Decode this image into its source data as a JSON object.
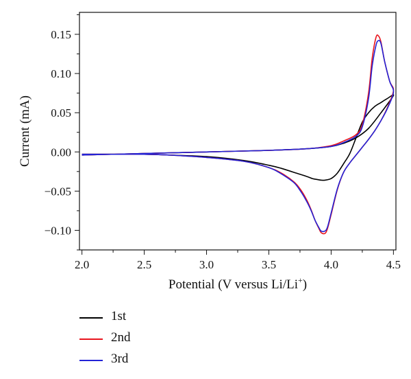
{
  "chart_data": {
    "type": "line",
    "title": "",
    "xlabel": "Potential (V versus Li/Li",
    "xlabel_sup": "+",
    "xlabel_end": ")",
    "ylabel": "Current (mA)",
    "xlim": [
      1.98,
      4.52
    ],
    "ylim": [
      -0.125,
      0.178
    ],
    "x_ticks": [
      2.0,
      2.5,
      3.0,
      3.5,
      4.0,
      4.5
    ],
    "x_tick_labels": [
      "2.0",
      "2.5",
      "3.0",
      "3.5",
      "4.0",
      "4.5"
    ],
    "y_ticks": [
      -0.1,
      -0.05,
      0.0,
      0.05,
      0.1,
      0.15
    ],
    "y_tick_labels": [
      "−0.10",
      "−0.05",
      "0.00",
      "0.05",
      "0.10",
      "0.15"
    ],
    "grid": false,
    "legend_position": "below",
    "series": [
      {
        "name": "1st",
        "color": "#000000",
        "x": [
          2.0,
          2.5,
          3.0,
          3.5,
          3.8,
          4.0,
          4.1,
          4.2,
          4.3,
          4.4,
          4.5,
          4.45,
          4.4,
          4.35,
          4.3,
          4.25,
          4.2,
          4.15,
          4.1,
          4.05,
          4.0,
          3.95,
          3.92,
          3.88,
          3.85,
          3.8,
          3.7,
          3.6,
          3.5,
          3.3,
          3.0,
          2.7,
          2.5,
          2.2,
          2.0
        ],
        "y": [
          -0.004,
          -0.002,
          0.0,
          0.002,
          0.004,
          0.007,
          0.011,
          0.018,
          0.03,
          0.05,
          0.072,
          0.068,
          0.063,
          0.058,
          0.05,
          0.038,
          0.018,
          -0.002,
          -0.015,
          -0.027,
          -0.034,
          -0.036,
          -0.036,
          -0.035,
          -0.034,
          -0.031,
          -0.026,
          -0.021,
          -0.017,
          -0.011,
          -0.006,
          -0.004,
          -0.003,
          -0.003,
          -0.003
        ]
      },
      {
        "name": "2nd",
        "color": "#e8141c",
        "x": [
          2.0,
          2.5,
          3.0,
          3.5,
          3.8,
          4.0,
          4.1,
          4.2,
          4.25,
          4.3,
          4.33,
          4.36,
          4.38,
          4.4,
          4.43,
          4.47,
          4.5,
          4.45,
          4.4,
          4.35,
          4.3,
          4.25,
          4.2,
          4.15,
          4.1,
          4.05,
          4.0,
          3.97,
          3.95,
          3.92,
          3.9,
          3.87,
          3.84,
          3.8,
          3.75,
          3.7,
          3.6,
          3.5,
          3.3,
          3.0,
          2.7,
          2.5,
          2.2,
          2.0
        ],
        "y": [
          -0.004,
          -0.002,
          0.0,
          0.002,
          0.004,
          0.008,
          0.014,
          0.022,
          0.035,
          0.075,
          0.12,
          0.146,
          0.148,
          0.14,
          0.115,
          0.09,
          0.078,
          0.056,
          0.04,
          0.027,
          0.016,
          0.006,
          -0.004,
          -0.014,
          -0.026,
          -0.048,
          -0.08,
          -0.098,
          -0.104,
          -0.103,
          -0.097,
          -0.087,
          -0.074,
          -0.06,
          -0.047,
          -0.038,
          -0.027,
          -0.02,
          -0.012,
          -0.007,
          -0.004,
          -0.003,
          -0.003,
          -0.003
        ]
      },
      {
        "name": "3rd",
        "color": "#2323d6",
        "x": [
          2.0,
          2.5,
          3.0,
          3.5,
          3.8,
          4.0,
          4.1,
          4.2,
          4.25,
          4.3,
          4.33,
          4.36,
          4.38,
          4.4,
          4.43,
          4.47,
          4.5,
          4.45,
          4.4,
          4.35,
          4.3,
          4.25,
          4.2,
          4.15,
          4.1,
          4.05,
          4.0,
          3.97,
          3.95,
          3.92,
          3.9,
          3.87,
          3.84,
          3.8,
          3.75,
          3.7,
          3.6,
          3.5,
          3.3,
          3.0,
          2.7,
          2.5,
          2.2,
          2.0
        ],
        "y": [
          -0.004,
          -0.002,
          0.0,
          0.002,
          0.004,
          0.007,
          0.012,
          0.02,
          0.032,
          0.068,
          0.11,
          0.136,
          0.142,
          0.138,
          0.115,
          0.09,
          0.076,
          0.055,
          0.04,
          0.027,
          0.016,
          0.006,
          -0.004,
          -0.014,
          -0.026,
          -0.047,
          -0.078,
          -0.096,
          -0.101,
          -0.101,
          -0.096,
          -0.087,
          -0.075,
          -0.062,
          -0.049,
          -0.039,
          -0.028,
          -0.02,
          -0.012,
          -0.007,
          -0.004,
          -0.003,
          -0.003,
          -0.003
        ]
      }
    ]
  }
}
